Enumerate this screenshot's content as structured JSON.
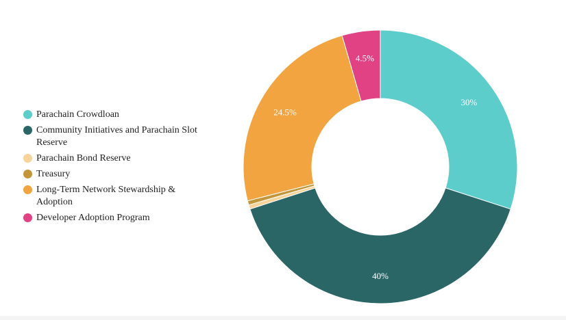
{
  "chart_data": {
    "type": "pie",
    "title": "",
    "legend_position": "left",
    "hole": "donut",
    "series": [
      {
        "name": "",
        "slices": [
          {
            "label": "Parachain Crowdloan",
            "value": 30,
            "display": "30%",
            "color": "#5ccdca"
          },
          {
            "label": "Community Initiatives and Parachain Slot Reserve",
            "value": 40,
            "display": "40%",
            "color": "#2b6667"
          },
          {
            "label": "Parachain Bond Reserve",
            "value": 0.5,
            "display": "",
            "color": "#f7d59a"
          },
          {
            "label": "Treasury",
            "value": 0.5,
            "display": "",
            "color": "#c4963a"
          },
          {
            "label": "Long-Term Network Stewardship & Adoption",
            "value": 24.5,
            "display": "24.5%",
            "color": "#f1a43f"
          },
          {
            "label": "Developer Adoption Program",
            "value": 4.5,
            "display": "4.5%",
            "color": "#e04284"
          }
        ]
      }
    ]
  }
}
